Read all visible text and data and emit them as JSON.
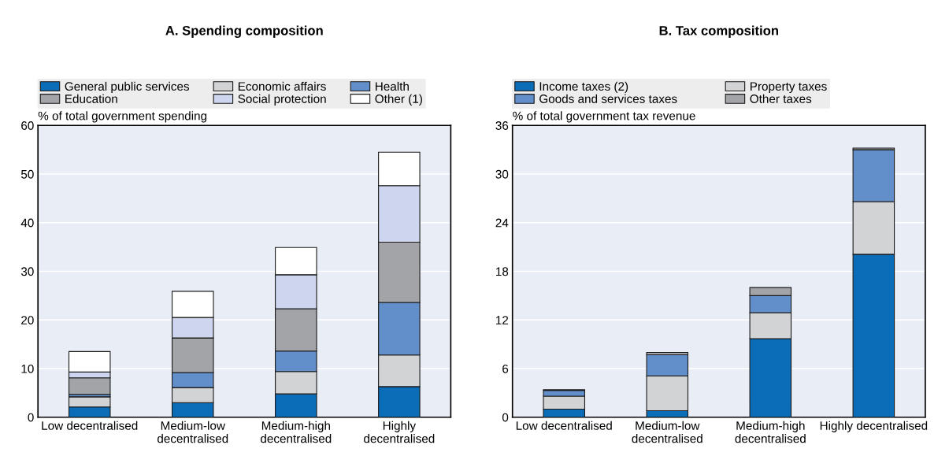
{
  "chart_data": [
    {
      "type": "bar",
      "title": "A. Spending composition",
      "ylabel": "% of total government spending",
      "stacked": true,
      "legend": "top",
      "grid": "y",
      "categories": [
        "Low decentralised",
        "Medium-low\ndecentralised",
        "Medium-high\ndecentralised",
        "Highly\ndecentralised"
      ],
      "ylim": [
        0,
        60
      ],
      "yticks": [
        0,
        10,
        20,
        30,
        40,
        50,
        60
      ],
      "series": [
        {
          "name": "General public services",
          "color": "#0b6cb7",
          "values": [
            2.1,
            3.0,
            4.8,
            6.3
          ]
        },
        {
          "name": "Economic affairs",
          "color": "#d2d3d5",
          "values": [
            2.1,
            3.1,
            4.6,
            6.5
          ]
        },
        {
          "name": "Health",
          "color": "#628fc9",
          "values": [
            0.5,
            3.1,
            4.2,
            10.8
          ]
        },
        {
          "name": "Education",
          "color": "#a3a4a8",
          "values": [
            3.4,
            7.1,
            8.7,
            12.4
          ]
        },
        {
          "name": "Social protection",
          "color": "#cdd6ee",
          "values": [
            1.2,
            4.2,
            7.0,
            11.6
          ]
        },
        {
          "name": "Other (1)",
          "color": "#ffffff",
          "values": [
            4.2,
            5.4,
            5.6,
            6.9
          ]
        }
      ]
    },
    {
      "type": "bar",
      "title": "B. Tax composition",
      "ylabel": "% of total government tax revenue",
      "stacked": true,
      "legend": "top",
      "grid": "y",
      "categories": [
        "Low decentralised",
        "Medium-low\ndecentralised",
        "Medium-high\ndecentralised",
        "Highly decentralised"
      ],
      "ylim": [
        0,
        36
      ],
      "yticks": [
        0,
        6,
        12,
        18,
        24,
        30,
        36
      ],
      "series": [
        {
          "name": "Income taxes (2)",
          "color": "#0b6cb7",
          "values": [
            1.0,
            0.8,
            9.7,
            20.1
          ]
        },
        {
          "name": "Property taxes",
          "color": "#d2d3d5",
          "values": [
            1.6,
            4.3,
            3.2,
            6.5
          ]
        },
        {
          "name": "Goods and services taxes",
          "color": "#628fc9",
          "values": [
            0.7,
            2.6,
            2.1,
            6.4
          ]
        },
        {
          "name": "Other taxes",
          "color": "#a3a4a8",
          "values": [
            0.1,
            0.3,
            1.0,
            0.2
          ]
        }
      ]
    }
  ]
}
